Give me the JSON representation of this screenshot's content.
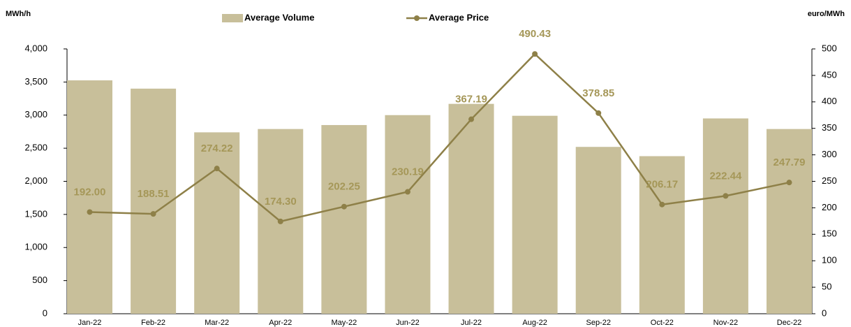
{
  "chart_data": {
    "type": "bar_line",
    "y_label": "MWh/h",
    "y2_label": "euro/MWh",
    "categories": [
      "Jan-22",
      "Feb-22",
      "Mar-22",
      "Apr-22",
      "May-22",
      "Jun-22",
      "Jul-22",
      "Aug-22",
      "Sep-22",
      "Oct-22",
      "Nov-22",
      "Dec-22"
    ],
    "series": [
      {
        "name": "Average Volume",
        "type": "bar",
        "color": "#c8bf9a",
        "values": [
          3525,
          3400,
          2740,
          2790,
          2850,
          3000,
          3170,
          2990,
          2520,
          2380,
          2950,
          2790
        ]
      },
      {
        "name": "Average Price",
        "type": "line",
        "axis": "y2",
        "color": "#8e8048",
        "label_color": "#a59758",
        "values": [
          192.0,
          188.51,
          274.22,
          174.3,
          202.25,
          230.19,
          367.19,
          490.43,
          378.85,
          206.17,
          222.44,
          247.79
        ],
        "value_labels": [
          "192.00",
          "188.51",
          "274.22",
          "174.30",
          "202.25",
          "230.19",
          "367.19",
          "490.43",
          "378.85",
          "206.17",
          "222.44",
          "247.79"
        ]
      }
    ],
    "ylim": [
      0,
      4000
    ],
    "yticks": [
      0,
      500,
      {
        "value": 1000,
        "label": "1,000"
      },
      {
        "value": 1500,
        "label": "1,500"
      },
      {
        "value": 2000,
        "label": "2,000"
      },
      {
        "value": 2500,
        "label": "2,500"
      },
      {
        "value": 3000,
        "label": "3,000"
      },
      {
        "value": 3500,
        "label": "3,500"
      },
      {
        "value": 4000,
        "label": "4,000"
      }
    ],
    "y2lim": [
      0,
      500
    ],
    "y2ticks": [
      0,
      50,
      100,
      150,
      200,
      250,
      300,
      350,
      400,
      450,
      500
    ],
    "grid": false
  }
}
